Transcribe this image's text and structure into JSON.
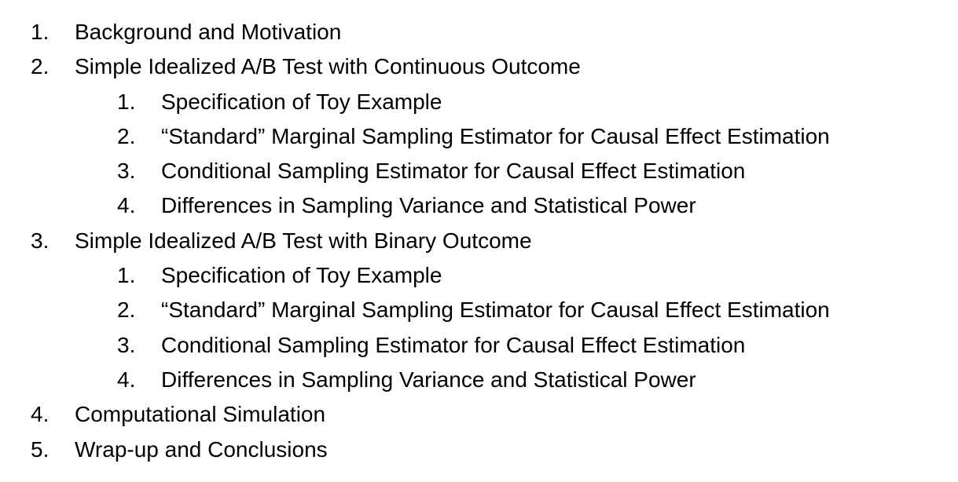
{
  "outline": [
    {
      "level": 1,
      "number": "1.",
      "text": "Background and Motivation"
    },
    {
      "level": 1,
      "number": "2.",
      "text": "Simple Idealized A/B Test with Continuous Outcome"
    },
    {
      "level": 2,
      "number": "1.",
      "text": "Specification of Toy Example"
    },
    {
      "level": 2,
      "number": "2.",
      "text": "“Standard” Marginal Sampling Estimator for Causal Effect Estimation"
    },
    {
      "level": 2,
      "number": "3.",
      "text": "Conditional Sampling Estimator for Causal Effect Estimation"
    },
    {
      "level": 2,
      "number": "4.",
      "text": "Differences in Sampling Variance and Statistical Power"
    },
    {
      "level": 1,
      "number": "3.",
      "text": "Simple Idealized A/B Test with Binary Outcome"
    },
    {
      "level": 2,
      "number": "1.",
      "text": "Specification of Toy Example"
    },
    {
      "level": 2,
      "number": "2.",
      "text": "“Standard” Marginal Sampling Estimator for Causal Effect Estimation"
    },
    {
      "level": 2,
      "number": "3.",
      "text": "Conditional Sampling Estimator for Causal Effect Estimation"
    },
    {
      "level": 2,
      "number": "4.",
      "text": "Differences in Sampling Variance and Statistical Power"
    },
    {
      "level": 1,
      "number": "4.",
      "text": "Computational Simulation"
    },
    {
      "level": 1,
      "number": "5.",
      "text": "Wrap-up and Conclusions"
    }
  ]
}
